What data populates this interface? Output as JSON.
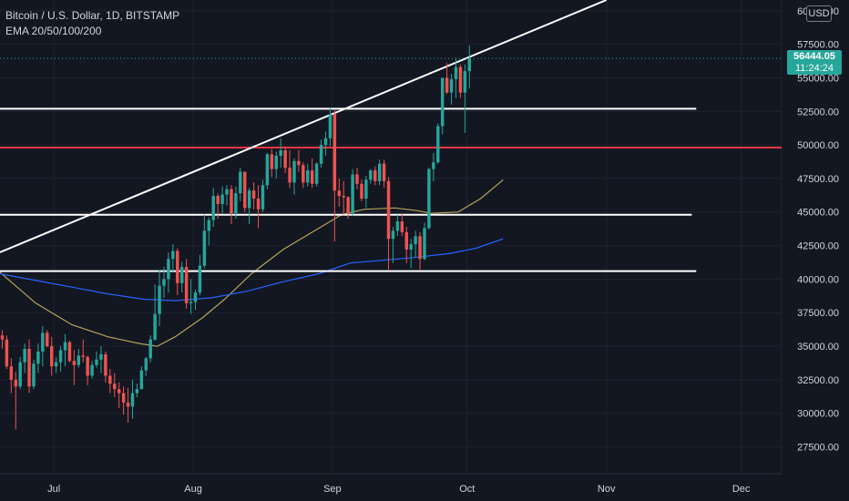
{
  "header": {
    "symbol_title": "Bitcoin / U.S. Dollar, 1D, BITSTAMP",
    "indicator_label": "EMA 20/50/100/200",
    "currency_label": "USD"
  },
  "price_tag": {
    "price": "56444.05",
    "countdown": "11:24:24"
  },
  "colors": {
    "background": "#131722",
    "grid": "#1e222d",
    "up": "#26a69a",
    "down": "#ef5350",
    "ema50": "#b5a35c",
    "ema200": "#2962ff",
    "trendline": "#ffffff",
    "level_red": "#f23645"
  },
  "chart_data": {
    "type": "candlestick",
    "y_axis": {
      "range": [
        25500,
        60800
      ],
      "tick_labels": [
        "27500.00",
        "30000.00",
        "32500.00",
        "35000.00",
        "37500.00",
        "40000.00",
        "42500.00",
        "45000.00",
        "47500.00",
        "50000.00",
        "52500.00",
        "55000.00",
        "57500.00",
        "60000.00"
      ]
    },
    "x_axis": {
      "start": "2021-06-19",
      "end": "2021-12-10",
      "ticks": [
        {
          "label": "Jul",
          "date": "2021-07-01"
        },
        {
          "label": "Aug",
          "date": "2021-08-01"
        },
        {
          "label": "Sep",
          "date": "2021-09-01"
        },
        {
          "label": "Oct",
          "date": "2021-10-01"
        },
        {
          "label": "Nov",
          "date": "2021-11-01"
        },
        {
          "label": "Dec",
          "date": "2021-12-01"
        }
      ]
    },
    "candle_start": "2021-06-19",
    "candles": [
      [
        35800,
        36200,
        34800,
        35500
      ],
      [
        35500,
        35800,
        33300,
        33500
      ],
      [
        33500,
        34100,
        31500,
        32500
      ],
      [
        32500,
        33100,
        28800,
        32000
      ],
      [
        32000,
        34200,
        31800,
        33800
      ],
      [
        33800,
        35200,
        33000,
        34800
      ],
      [
        34800,
        35500,
        31500,
        32000
      ],
      [
        32000,
        34000,
        31800,
        33700
      ],
      [
        33700,
        35200,
        33000,
        34600
      ],
      [
        34600,
        36500,
        33500,
        36000
      ],
      [
        36000,
        36200,
        34900,
        35000
      ],
      [
        35000,
        35700,
        32800,
        33500
      ],
      [
        33500,
        34200,
        33000,
        33800
      ],
      [
        33800,
        35000,
        33100,
        34700
      ],
      [
        34700,
        35900,
        33500,
        35300
      ],
      [
        35300,
        35400,
        33800,
        33900
      ],
      [
        33900,
        34700,
        32100,
        33600
      ],
      [
        33600,
        34800,
        33400,
        34300
      ],
      [
        34300,
        35500,
        33800,
        34200
      ],
      [
        34200,
        34300,
        32100,
        32800
      ],
      [
        32800,
        33900,
        32600,
        33600
      ],
      [
        33600,
        34600,
        33400,
        34000
      ],
      [
        34000,
        35000,
        33000,
        34400
      ],
      [
        34400,
        34600,
        32300,
        32800
      ],
      [
        32800,
        33300,
        31500,
        32200
      ],
      [
        32200,
        33000,
        31200,
        31800
      ],
      [
        31800,
        32300,
        30400,
        31500
      ],
      [
        31500,
        32000,
        29900,
        30800
      ],
      [
        30800,
        31900,
        29300,
        30500
      ],
      [
        30500,
        32500,
        29600,
        31500
      ],
      [
        31500,
        32200,
        31200,
        31800
      ],
      [
        31800,
        33500,
        31800,
        33200
      ],
      [
        33200,
        34200,
        32800,
        34100
      ],
      [
        34100,
        35800,
        33800,
        35500
      ],
      [
        35500,
        39600,
        35400,
        37400
      ],
      [
        37400,
        40700,
        36500,
        39500
      ],
      [
        39500,
        40900,
        38600,
        40000
      ],
      [
        40000,
        42000,
        39000,
        41500
      ],
      [
        41500,
        42600,
        40500,
        42100
      ],
      [
        42100,
        42300,
        38800,
        39700
      ],
      [
        39700,
        41300,
        39000,
        40900
      ],
      [
        40900,
        41500,
        37800,
        38200
      ],
      [
        38200,
        40000,
        37400,
        38300
      ],
      [
        38300,
        39200,
        37700,
        39000
      ],
      [
        39000,
        41800,
        38800,
        41000
      ],
      [
        41000,
        44800,
        40800,
        43600
      ],
      [
        43600,
        44600,
        42500,
        44400
      ],
      [
        44400,
        46800,
        43900,
        46200
      ],
      [
        46200,
        46400,
        44500,
        45600
      ],
      [
        45600,
        46900,
        44900,
        46300
      ],
      [
        46300,
        47000,
        45500,
        46700
      ],
      [
        46700,
        47000,
        44100,
        44900
      ],
      [
        44900,
        46900,
        44500,
        46400
      ],
      [
        46400,
        48300,
        45800,
        48000
      ],
      [
        48000,
        48000,
        45000,
        45300
      ],
      [
        45300,
        46800,
        44100,
        46600
      ],
      [
        46600,
        47200,
        45200,
        46000
      ],
      [
        46000,
        47000,
        43800,
        45200
      ],
      [
        45200,
        47400,
        45000,
        47000
      ],
      [
        47000,
        49400,
        46700,
        49300
      ],
      [
        49300,
        49700,
        47600,
        48200
      ],
      [
        48200,
        49500,
        47500,
        49200
      ],
      [
        49200,
        50500,
        48300,
        49600
      ],
      [
        49600,
        49900,
        47900,
        48300
      ],
      [
        48300,
        49600,
        46800,
        47200
      ],
      [
        47200,
        49000,
        46300,
        48800
      ],
      [
        48800,
        49600,
        48000,
        48500
      ],
      [
        48500,
        48700,
        46800,
        47200
      ],
      [
        47200,
        48600,
        46900,
        48100
      ],
      [
        48100,
        49000,
        46800,
        47100
      ],
      [
        47100,
        48700,
        46900,
        48600
      ],
      [
        48600,
        50400,
        48300,
        50000
      ],
      [
        50000,
        51000,
        49200,
        50500
      ],
      [
        50500,
        52800,
        49900,
        52300
      ],
      [
        52300,
        52600,
        42800,
        46600
      ],
      [
        46600,
        47500,
        45400,
        46200
      ],
      [
        46200,
        47300,
        44800,
        46100
      ],
      [
        46100,
        46200,
        44500,
        44900
      ],
      [
        44900,
        48200,
        44700,
        47800
      ],
      [
        47800,
        48300,
        46700,
        47100
      ],
      [
        47100,
        47400,
        45800,
        46000
      ],
      [
        46000,
        47700,
        45300,
        47400
      ],
      [
        47400,
        48200,
        47100,
        48100
      ],
      [
        48100,
        48400,
        47000,
        47300
      ],
      [
        47300,
        48900,
        47000,
        48600
      ],
      [
        48600,
        48900,
        46800,
        47300
      ],
      [
        47300,
        47600,
        40700,
        43000
      ],
      [
        43000,
        43900,
        41200,
        43600
      ],
      [
        43600,
        44800,
        43200,
        44300
      ],
      [
        44300,
        44900,
        43200,
        43500
      ],
      [
        43500,
        43900,
        41200,
        42200
      ],
      [
        42200,
        43000,
        40800,
        42600
      ],
      [
        42600,
        43600,
        41600,
        43200
      ],
      [
        43200,
        43500,
        40700,
        41500
      ],
      [
        41500,
        44200,
        41400,
        43800
      ],
      [
        43800,
        48300,
        43700,
        48200
      ],
      [
        48200,
        49400,
        47300,
        48700
      ],
      [
        48700,
        51600,
        48600,
        51400
      ],
      [
        51400,
        55000,
        50800,
        55000
      ],
      [
        55000,
        56100,
        53800,
        53900
      ],
      [
        53900,
        55300,
        53000,
        54900
      ],
      [
        54900,
        56500,
        53500,
        55800
      ],
      [
        55800,
        56000,
        53500,
        53900
      ],
      [
        53900,
        56000,
        50900,
        55500
      ],
      [
        55500,
        57400,
        54200,
        56444
      ]
    ],
    "ema50": [
      [
        "2021-06-19",
        40500
      ],
      [
        "2021-06-27",
        38200
      ],
      [
        "2021-07-05",
        36600
      ],
      [
        "2021-07-13",
        35700
      ],
      [
        "2021-07-20",
        35200
      ],
      [
        "2021-07-24",
        35000
      ],
      [
        "2021-07-28",
        35700
      ],
      [
        "2021-08-03",
        37100
      ],
      [
        "2021-08-08",
        38500
      ],
      [
        "2021-08-14",
        40400
      ],
      [
        "2021-08-21",
        42200
      ],
      [
        "2021-08-28",
        43600
      ],
      [
        "2021-09-03",
        44800
      ],
      [
        "2021-09-08",
        45200
      ],
      [
        "2021-09-15",
        45300
      ],
      [
        "2021-09-20",
        45100
      ],
      [
        "2021-09-23",
        44900
      ],
      [
        "2021-09-29",
        45000
      ],
      [
        "2021-10-04",
        46000
      ],
      [
        "2021-10-09",
        47400
      ]
    ],
    "ema200": [
      [
        "2021-06-19",
        40400
      ],
      [
        "2021-06-27",
        39900
      ],
      [
        "2021-07-05",
        39400
      ],
      [
        "2021-07-13",
        38900
      ],
      [
        "2021-07-21",
        38500
      ],
      [
        "2021-07-28",
        38400
      ],
      [
        "2021-08-05",
        38600
      ],
      [
        "2021-08-13",
        39100
      ],
      [
        "2021-08-21",
        39800
      ],
      [
        "2021-08-29",
        40400
      ],
      [
        "2021-09-05",
        41200
      ],
      [
        "2021-09-12",
        41400
      ],
      [
        "2021-09-19",
        41600
      ],
      [
        "2021-09-27",
        41900
      ],
      [
        "2021-10-03",
        42300
      ],
      [
        "2021-10-09",
        43000
      ]
    ],
    "horizontal_levels": [
      {
        "price": 52700,
        "from": "2021-06-19",
        "to": "2021-11-21",
        "color": "#ffffff"
      },
      {
        "price": 49800,
        "from": "2021-06-19",
        "to": "2021-12-10",
        "color": "#f23645"
      },
      {
        "price": 44800,
        "from": "2021-06-19",
        "to": "2021-11-20",
        "color": "#ffffff"
      },
      {
        "price": 40600,
        "from": "2021-06-19",
        "to": "2021-11-21",
        "color": "#ffffff"
      }
    ],
    "trendline": {
      "from": [
        "2021-06-19",
        42000
      ],
      "to": [
        "2021-11-01",
        60800
      ]
    },
    "last_price": 56444.05,
    "grid": true
  }
}
